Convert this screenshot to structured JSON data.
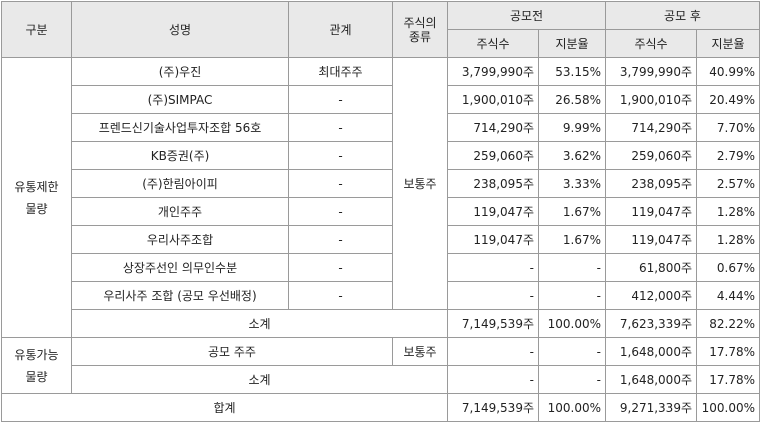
{
  "headers": {
    "category": "구분",
    "name": "성명",
    "relation": "관계",
    "stock_type": "주식의\n종류",
    "before": "공모전",
    "after": "공모 후",
    "shares": "주식수",
    "ratio": "지분율"
  },
  "restricted": {
    "label": "유통제한\n물량",
    "stock_type": "보통주",
    "rows": [
      {
        "name": "(주)우진",
        "relation": "최대주주",
        "before_shares": "3,799,990주",
        "before_ratio": "53.15%",
        "after_shares": "3,799,990주",
        "after_ratio": "40.99%"
      },
      {
        "name": "(주)SIMPAC",
        "relation": "-",
        "before_shares": "1,900,010주",
        "before_ratio": "26.58%",
        "after_shares": "1,900,010주",
        "after_ratio": "20.49%"
      },
      {
        "name": "프렌드신기술사업투자조합 56호",
        "relation": "-",
        "before_shares": "714,290주",
        "before_ratio": "9.99%",
        "after_shares": "714,290주",
        "after_ratio": "7.70%"
      },
      {
        "name": "KB증권(주)",
        "relation": "-",
        "before_shares": "259,060주",
        "before_ratio": "3.62%",
        "after_shares": "259,060주",
        "after_ratio": "2.79%"
      },
      {
        "name": "(주)한림아이피",
        "relation": "-",
        "before_shares": "238,095주",
        "before_ratio": "3.33%",
        "after_shares": "238,095주",
        "after_ratio": "2.57%"
      },
      {
        "name": "개인주주",
        "relation": "-",
        "before_shares": "119,047주",
        "before_ratio": "1.67%",
        "after_shares": "119,047주",
        "after_ratio": "1.28%"
      },
      {
        "name": "우리사주조합",
        "relation": "-",
        "before_shares": "119,047주",
        "before_ratio": "1.67%",
        "after_shares": "119,047주",
        "after_ratio": "1.28%"
      },
      {
        "name": "상장주선인 의무인수분",
        "relation": "-",
        "before_shares": "-",
        "before_ratio": "-",
        "after_shares": "61,800주",
        "after_ratio": "0.67%"
      },
      {
        "name": "우리사주 조합 (공모 우선배정)",
        "relation": "-",
        "before_shares": "-",
        "before_ratio": "-",
        "after_shares": "412,000주",
        "after_ratio": "4.44%"
      }
    ],
    "subtotal": {
      "label": "소계",
      "before_shares": "7,149,539주",
      "before_ratio": "100.00%",
      "after_shares": "7,623,339주",
      "after_ratio": "82.22%"
    }
  },
  "tradable": {
    "label": "유통가능\n물량",
    "row": {
      "name": "공모 주주",
      "stock_type": "보통주",
      "before_shares": "-",
      "before_ratio": "-",
      "after_shares": "1,648,000주",
      "after_ratio": "17.78%"
    },
    "subtotal": {
      "label": "소계",
      "before_shares": "-",
      "before_ratio": "-",
      "after_shares": "1,648,000주",
      "after_ratio": "17.78%"
    }
  },
  "total": {
    "label": "합계",
    "before_shares": "7,149,539주",
    "before_ratio": "100.00%",
    "after_shares": "9,271,339주",
    "after_ratio": "100.00%"
  }
}
